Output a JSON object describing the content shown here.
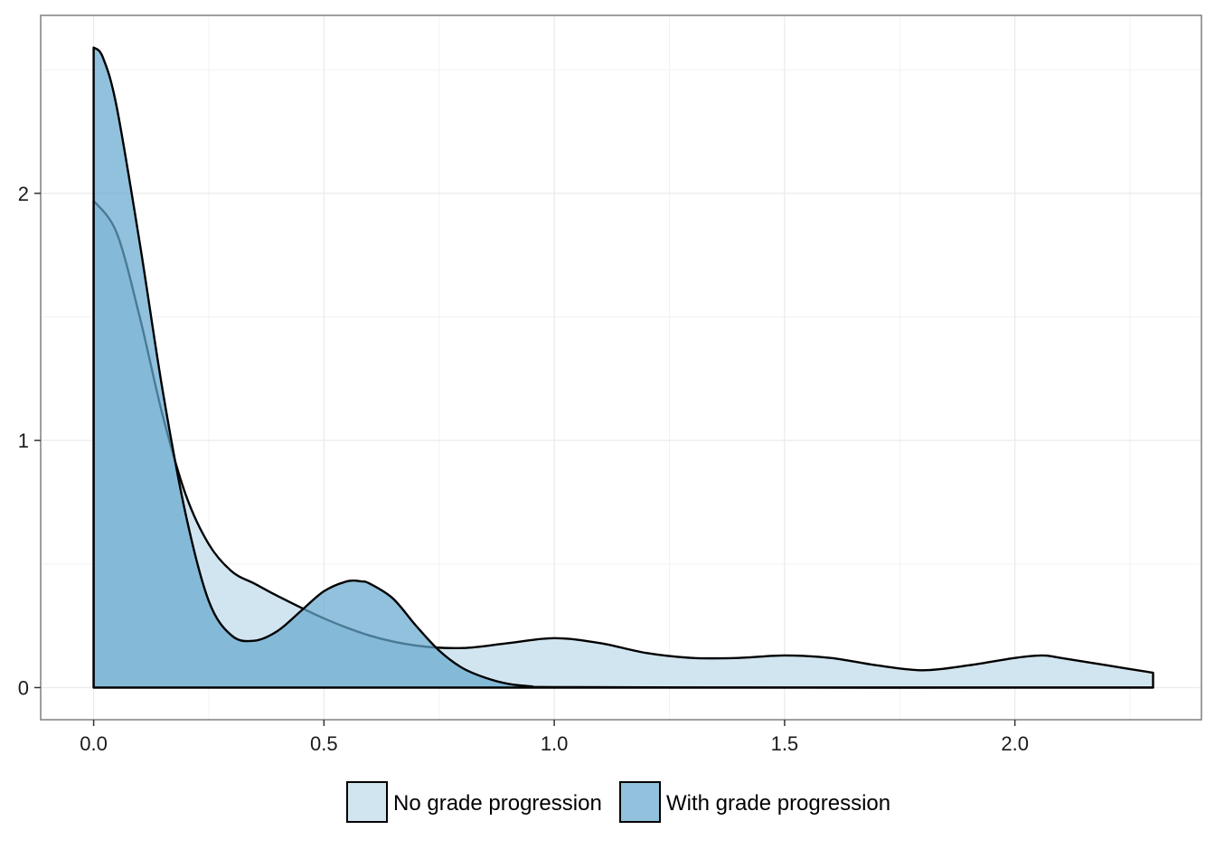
{
  "chart_data": {
    "type": "area",
    "subtype": "density",
    "title": "",
    "xlabel": "",
    "ylabel": "",
    "xlim": [
      -0.115,
      2.405
    ],
    "ylim": [
      -0.13,
      2.72
    ],
    "x_ticks": [
      0.0,
      0.5,
      1.0,
      1.5,
      2.0
    ],
    "x_tick_labels": [
      "0.0",
      "0.5",
      "1.0",
      "1.5",
      "2.0"
    ],
    "y_ticks": [
      0,
      1,
      2
    ],
    "y_tick_labels": [
      "0",
      "1",
      "2"
    ],
    "grid": true,
    "legend_position": "bottom",
    "series": [
      {
        "name": "No grade progression",
        "color": "#d1e5f0",
        "opacity": 1.0,
        "x": [
          0.0,
          0.05,
          0.1,
          0.15,
          0.2,
          0.25,
          0.3,
          0.35,
          0.4,
          0.5,
          0.6,
          0.7,
          0.8,
          0.9,
          1.0,
          1.1,
          1.2,
          1.3,
          1.4,
          1.5,
          1.6,
          1.7,
          1.8,
          1.9,
          2.0,
          2.06,
          2.1,
          2.2,
          2.3
        ],
        "y": [
          1.97,
          1.84,
          1.5,
          1.1,
          0.78,
          0.58,
          0.47,
          0.42,
          0.37,
          0.28,
          0.21,
          0.17,
          0.16,
          0.18,
          0.2,
          0.18,
          0.14,
          0.12,
          0.12,
          0.13,
          0.12,
          0.09,
          0.07,
          0.09,
          0.12,
          0.13,
          0.12,
          0.09,
          0.06
        ]
      },
      {
        "name": "With grade progression",
        "color": "#67a9cf",
        "opacity": 0.72,
        "x": [
          0.0,
          0.02,
          0.05,
          0.1,
          0.15,
          0.2,
          0.25,
          0.3,
          0.35,
          0.4,
          0.45,
          0.5,
          0.55,
          0.58,
          0.6,
          0.65,
          0.7,
          0.75,
          0.8,
          0.85,
          0.9,
          0.95,
          1.0,
          1.5,
          2.0,
          2.3
        ],
        "y": [
          2.59,
          2.55,
          2.35,
          1.8,
          1.2,
          0.7,
          0.35,
          0.21,
          0.19,
          0.23,
          0.31,
          0.39,
          0.43,
          0.43,
          0.42,
          0.36,
          0.25,
          0.15,
          0.08,
          0.04,
          0.015,
          0.005,
          0.002,
          0.0,
          0.0,
          0.0
        ]
      }
    ]
  }
}
